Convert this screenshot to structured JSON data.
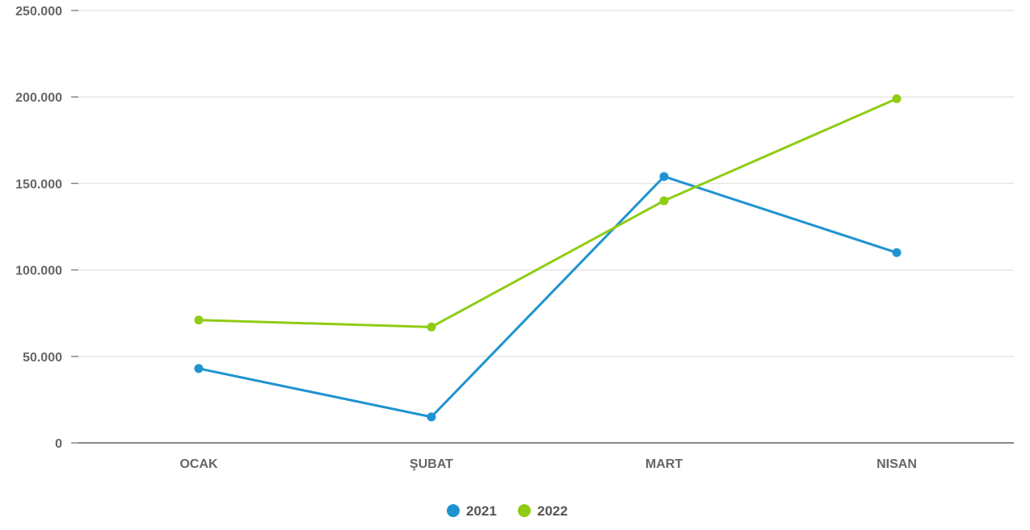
{
  "chart_data": {
    "type": "line",
    "title": "",
    "xlabel": "",
    "ylabel": "",
    "categories": [
      "OCAK",
      "ŞUBAT",
      "MART",
      "NISAN"
    ],
    "y_ticks": [
      0,
      50000,
      100000,
      150000,
      200000,
      250000
    ],
    "y_tick_labels": [
      "0",
      "50.000",
      "100.000",
      "150.000",
      "200.000",
      "250.000"
    ],
    "ylim": [
      0,
      250000
    ],
    "grid": true,
    "legend_position": "bottom-center",
    "series": [
      {
        "name": "2021",
        "color": "#1f93d0",
        "values": [
          43000,
          15000,
          154000,
          110000
        ]
      },
      {
        "name": "2022",
        "color": "#8fcc14",
        "values": [
          71000,
          67000,
          140000,
          199000
        ]
      }
    ]
  }
}
